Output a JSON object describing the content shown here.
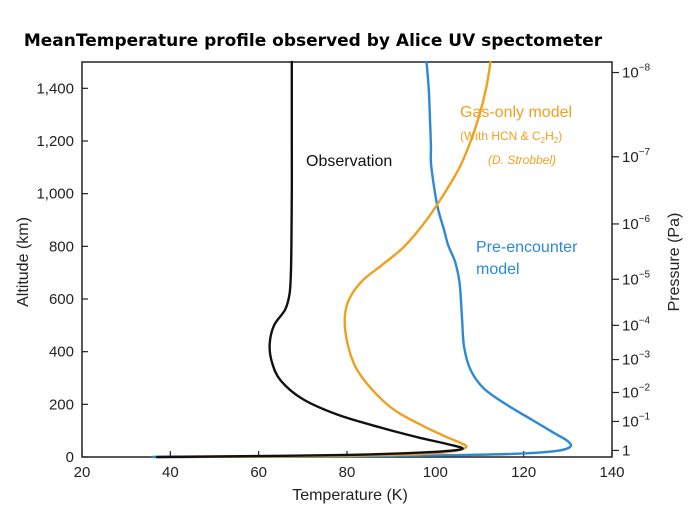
{
  "chart_data": {
    "type": "line",
    "title": "MeanTemperature profile observed by Alice UV spectometer",
    "xlabel": "Temperature (K)",
    "ylabel": "Altitude (km)",
    "y2label": "Pressure (Pa)",
    "xlim": [
      20,
      140
    ],
    "ylim": [
      0,
      1500
    ],
    "xticks": [
      "20",
      "40",
      "60",
      "80",
      "100",
      "120",
      "140"
    ],
    "yticks": [
      "0",
      "200",
      "400",
      "600",
      "800",
      "1,000",
      "1,200",
      "1,400"
    ],
    "pressure_ticks": [
      {
        "label": "10",
        "exp": "−8",
        "y": 1460
      },
      {
        "label": "10",
        "exp": "−7",
        "y": 1140
      },
      {
        "label": "10",
        "exp": "−6",
        "y": 885
      },
      {
        "label": "10",
        "exp": "−5",
        "y": 675
      },
      {
        "label": "10",
        "exp": "−4",
        "y": 500
      },
      {
        "label": "10",
        "exp": "−3",
        "y": 370
      },
      {
        "label": "10",
        "exp": "−2",
        "y": 245
      },
      {
        "label": "10",
        "exp": "−1",
        "y": 135
      },
      {
        "label": "1",
        "exp": "",
        "y": 25
      }
    ],
    "series": [
      {
        "name": "Observation",
        "color": "#111111",
        "points": [
          [
            37,
            0
          ],
          [
            50,
            2
          ],
          [
            80,
            8
          ],
          [
            98,
            18
          ],
          [
            106,
            30
          ],
          [
            103,
            48
          ],
          [
            96,
            75
          ],
          [
            88,
            110
          ],
          [
            78,
            160
          ],
          [
            70,
            220
          ],
          [
            65,
            290
          ],
          [
            63,
            360
          ],
          [
            62.5,
            430
          ],
          [
            63.5,
            500
          ],
          [
            66,
            560
          ],
          [
            67,
            620
          ],
          [
            67.3,
            700
          ],
          [
            67.4,
            800
          ],
          [
            67.5,
            1000
          ],
          [
            67.5,
            1200
          ],
          [
            67.5,
            1500
          ]
        ]
      },
      {
        "name": "Gas-only model",
        "color": "#f0a020",
        "points": [
          [
            41,
            0
          ],
          [
            70,
            3
          ],
          [
            95,
            10
          ],
          [
            104,
            22
          ],
          [
            107,
            38
          ],
          [
            105.5,
            55
          ],
          [
            102,
            80
          ],
          [
            97,
            120
          ],
          [
            91,
            175
          ],
          [
            86,
            250
          ],
          [
            82,
            340
          ],
          [
            80,
            440
          ],
          [
            79.5,
            530
          ],
          [
            80.5,
            600
          ],
          [
            83.5,
            670
          ],
          [
            88,
            730
          ],
          [
            93,
            800
          ],
          [
            98,
            900
          ],
          [
            102,
            1000
          ],
          [
            105.5,
            1100
          ],
          [
            108,
            1200
          ],
          [
            110,
            1300
          ],
          [
            111.5,
            1400
          ],
          [
            112.5,
            1500
          ]
        ]
      },
      {
        "name": "Pre-encounter model",
        "color": "#2b8ad8",
        "points": [
          [
            36,
            0
          ],
          [
            70,
            2
          ],
          [
            100,
            6
          ],
          [
            118,
            12
          ],
          [
            127,
            22
          ],
          [
            130.5,
            38
          ],
          [
            130,
            60
          ],
          [
            127,
            90
          ],
          [
            122,
            140
          ],
          [
            116,
            200
          ],
          [
            111,
            260
          ],
          [
            108,
            330
          ],
          [
            106.5,
            420
          ],
          [
            106,
            540
          ],
          [
            105.5,
            660
          ],
          [
            104.5,
            740
          ],
          [
            103,
            800
          ],
          [
            102,
            860
          ],
          [
            100.5,
            950
          ],
          [
            99.5,
            1050
          ],
          [
            99,
            1120
          ],
          [
            99,
            1180
          ],
          [
            98.8,
            1280
          ],
          [
            98.5,
            1400
          ],
          [
            98,
            1500
          ]
        ]
      }
    ],
    "annotations": {
      "observation": "Observation",
      "gas_line1": "Gas-only model",
      "gas_line2_pre": "(With HCN  & C",
      "gas_line2_sub1": "2",
      "gas_line2_mid": "H",
      "gas_line2_sub2": "2",
      "gas_line2_post": ")",
      "gas_line3": "(D. Strobbel)",
      "pre_line1": "Pre-encounter",
      "pre_line2": "model"
    }
  }
}
